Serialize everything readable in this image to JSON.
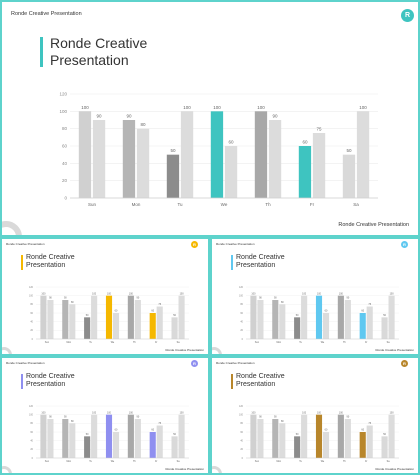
{
  "brand_name": "Ronde Creative Presentation",
  "slide_title": [
    "Ronde Creative",
    "Presentation"
  ],
  "badge_letter": "R",
  "chart_data": {
    "type": "bar",
    "categories": [
      "Sun",
      "Mon",
      "Tu",
      "We",
      "Th",
      "Fr",
      "Sa"
    ],
    "series": [
      {
        "values": [
          100,
          90,
          50,
          100,
          100,
          60,
          50
        ]
      },
      {
        "values": [
          90,
          80,
          100,
          60,
          90,
          75,
          100
        ]
      }
    ],
    "ylim": [
      0,
      120
    ],
    "yticks": [
      0,
      20,
      40,
      60,
      80,
      100,
      120
    ],
    "grid": true
  },
  "slides": [
    {
      "theme": "main",
      "accent_color": "#3ec4c0",
      "highlight_color": "#3ec4c0"
    },
    {
      "theme": "yellow",
      "accent_color": "#f5b800",
      "highlight_color": "#f5b800"
    },
    {
      "theme": "light-blue",
      "accent_color": "#5fc8f0",
      "highlight_color": "#5fc8f0"
    },
    {
      "theme": "lavender",
      "accent_color": "#8f8ff0",
      "highlight_color": "#8f8ff0"
    },
    {
      "theme": "bronze",
      "accent_color": "#b8862b",
      "highlight_color": "#b8862b"
    }
  ],
  "bar_colors": {
    "series1": [
      "#d0d0d0",
      "#b5b5b5",
      "#8c8c8c",
      null,
      "#a8a8a8",
      null,
      "#d9d9d9"
    ],
    "series2": "#dcdcdc"
  }
}
